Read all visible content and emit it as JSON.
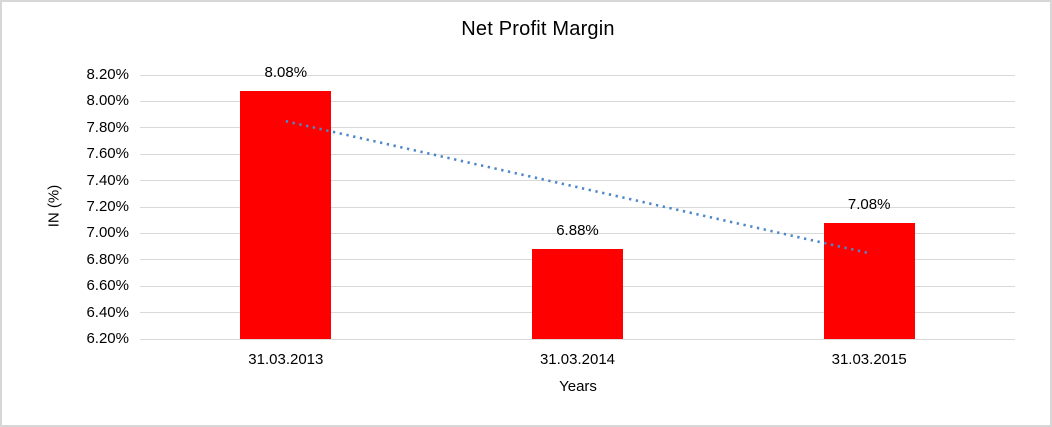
{
  "window": {
    "background": "#FFFFFF",
    "border_color": "#D7D7D7"
  },
  "chart_data": {
    "type": "bar",
    "title": "Net Profit Margin",
    "categories": [
      "31.03.2013",
      "31.03.2014",
      "31.03.2015"
    ],
    "values": [
      8.08,
      6.88,
      7.08
    ],
    "value_labels": [
      "8.08%",
      "6.88%",
      "7.08%"
    ],
    "xlabel": "Years",
    "ylabel": "IN (%)",
    "ylim": [
      6.2,
      8.2
    ],
    "ytick_step": 0.2,
    "ytick_labels": [
      "8.20%",
      "8.00%",
      "7.80%",
      "7.60%",
      "7.40%",
      "7.20%",
      "7.00%",
      "6.80%",
      "6.60%",
      "6.40%",
      "6.20%"
    ],
    "grid": true,
    "legend": "none",
    "bar_color": "#FF0000",
    "gridline_color": "#D9D9D9",
    "text_color": "#000000",
    "trendline": {
      "style": "dotted",
      "color": "#4E87C8",
      "start_value": 7.85,
      "end_value": 6.85
    }
  }
}
